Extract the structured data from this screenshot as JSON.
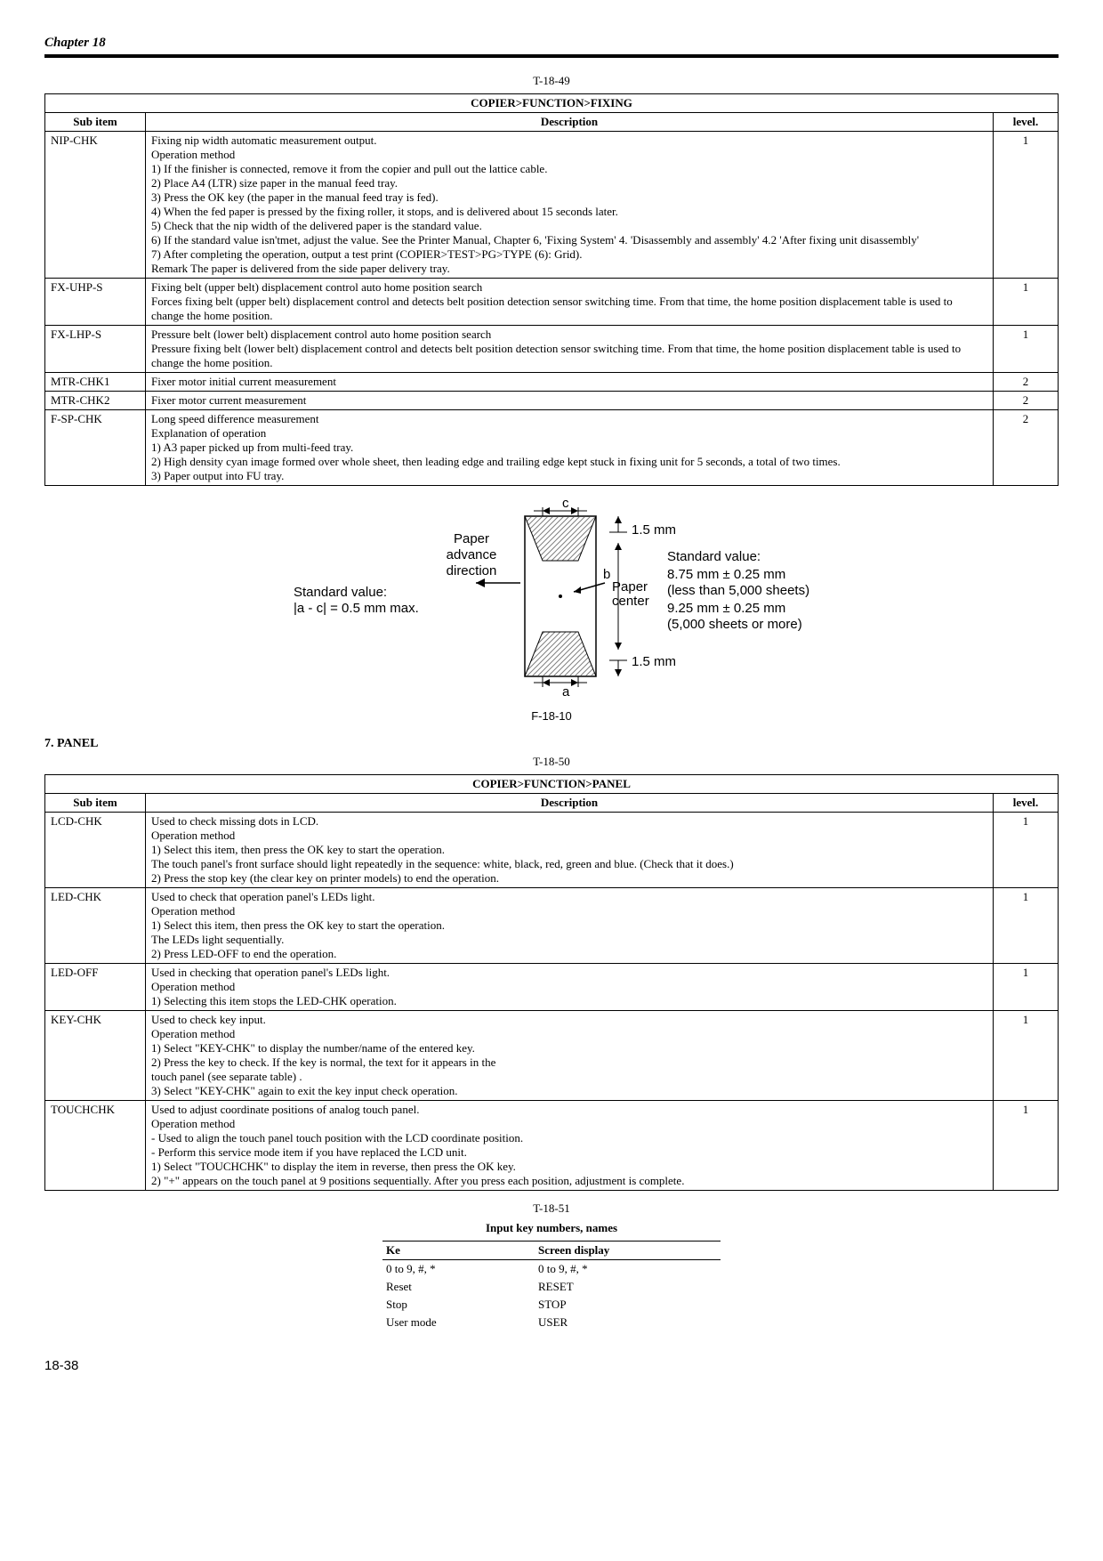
{
  "chapter_header": "Chapter 18",
  "page_number": "18-38",
  "table1": {
    "label": "T-18-49",
    "title": "COPIER>FUNCTION>FIXING",
    "headers": {
      "sub": "Sub item",
      "desc": "Description",
      "level": "level."
    },
    "rows": [
      {
        "sub": "NIP-CHK",
        "desc": [
          "Fixing nip width automatic measurement output.",
          "Operation method",
          "1) If the finisher is connected, remove it from the copier and pull out the lattice cable.",
          "2) Place A4 (LTR) size paper in the manual feed tray.",
          "3) Press the OK key (the paper in the manual feed tray is fed).",
          "4) When the fed paper is pressed by the fixing roller, it stops, and is delivered about 15 seconds later.",
          "5) Check that the nip width of the delivered paper is the standard value.",
          "6) If the standard value isn'tmet, adjust the value. See the Printer Manual, Chapter 6, 'Fixing System' 4. 'Disassembly and assembly' 4.2 'After fixing unit disassembly'",
          "7) After completing the operation, output a test print (COPIER>TEST>PG>TYPE (6): Grid).",
          "Remark The paper is delivered from the side paper delivery tray."
        ],
        "level": "1"
      },
      {
        "sub": "FX-UHP-S",
        "desc": [
          "Fixing belt (upper belt) displacement control auto home position search",
          "Forces fixing belt (upper belt) displacement control and detects belt position detection sensor switching time. From that time, the home position displacement table is used to change the home position."
        ],
        "level": "1"
      },
      {
        "sub": "FX-LHP-S",
        "desc": [
          "Pressure belt (lower belt) displacement control auto home position search",
          "Pressure fixing belt (lower belt) displacement control and detects belt position detection sensor switching time. From that time, the home position displacement table is used to change the home position."
        ],
        "level": "1"
      },
      {
        "sub": "MTR-CHK1",
        "desc": [
          "Fixer motor initial current measurement"
        ],
        "level": "2"
      },
      {
        "sub": "MTR-CHK2",
        "desc": [
          "Fixer motor current measurement"
        ],
        "level": "2"
      },
      {
        "sub": "F-SP-CHK",
        "desc": [
          "Long speed difference measurement",
          "Explanation of operation",
          "1) A3 paper picked up from multi-feed tray.",
          "2) High density cyan image formed over whole sheet, then leading edge and trailing edge kept stuck in fixing unit for 5 seconds, a total of two times.",
          "3) Paper output into FU tray."
        ],
        "level": "2"
      }
    ]
  },
  "figure": {
    "caption": "F-18-10",
    "labels": {
      "paper_advance": "Paper\nadvance\ndirection",
      "std_left_1": "Standard value:",
      "std_left_2": "|a - c| = 0.5 mm max.",
      "c": "c",
      "a": "a",
      "b": "b",
      "paper_center": "Paper\ncenter",
      "mm15_top": "1.5 mm",
      "mm15_bot": "1.5 mm",
      "std_right_1": "Standard value:",
      "std_right_2": "8.75 mm ± 0.25 mm",
      "std_right_3": "(less than 5,000 sheets)",
      "std_right_4": "9.25 mm ± 0.25 mm",
      "std_right_5": "(5,000 sheets or more)"
    },
    "colors": {
      "stroke": "#000000",
      "hatch": "#808080",
      "bg": "#ffffff"
    }
  },
  "section7": "7. PANEL",
  "table2": {
    "label": "T-18-50",
    "title": "COPIER>FUNCTION>PANEL",
    "headers": {
      "sub": "Sub item",
      "desc": "Description",
      "level": "level."
    },
    "rows": [
      {
        "sub": "LCD-CHK",
        "desc": [
          "Used to check missing dots in LCD.",
          "Operation method",
          "1) Select this item, then press the OK key to start the operation.",
          "The touch panel's front surface should light repeatedly in the sequence: white, black, red, green and blue. (Check that it does.)",
          "2) Press the stop key (the clear key on printer models) to end the operation."
        ],
        "level": "1"
      },
      {
        "sub": "LED-CHK",
        "desc": [
          "Used to check that operation panel's LEDs light.",
          "Operation method",
          "1) Select this item, then press the OK key to start the operation.",
          "The LEDs light sequentially.",
          "2) Press LED-OFF to end the operation."
        ],
        "level": "1"
      },
      {
        "sub": "LED-OFF",
        "desc": [
          "Used in checking that operation panel's LEDs light.",
          "Operation method",
          "1) Selecting this item stops the LED-CHK operation."
        ],
        "level": "1"
      },
      {
        "sub": "KEY-CHK",
        "desc": [
          "Used to check key input.",
          "Operation method",
          "1) Select \"KEY-CHK\" to display the number/name of the entered key.",
          "2) Press the key to check. If the key is normal, the text for it appears in the",
          "touch panel (see separate table) .",
          "3) Select \"KEY-CHK\" again to exit the key input check operation."
        ],
        "level": "1"
      },
      {
        "sub": "TOUCHCHK",
        "desc": [
          "Used to adjust coordinate positions of analog touch panel.",
          "Operation method",
          "- Used to align the touch panel touch position with the LCD coordinate position.",
          "- Perform this service mode item if you have replaced the LCD unit.",
          "1) Select \"TOUCHCHK\" to display the item in reverse, then press the OK key.",
          "2) \"+\" appears on the touch panel at 9 positions sequentially. After you press each position, adjustment is complete."
        ],
        "level": "1"
      }
    ]
  },
  "table3": {
    "label": "T-18-51",
    "title": "Input key numbers, names",
    "headers": {
      "ke": "Ke",
      "screen": "Screen display"
    },
    "rows": [
      {
        "ke": "0 to 9, #, *",
        "screen": "0 to 9, #, *"
      },
      {
        "ke": "Reset",
        "screen": "RESET"
      },
      {
        "ke": "Stop",
        "screen": "STOP"
      },
      {
        "ke": "User mode",
        "screen": "USER"
      }
    ]
  }
}
